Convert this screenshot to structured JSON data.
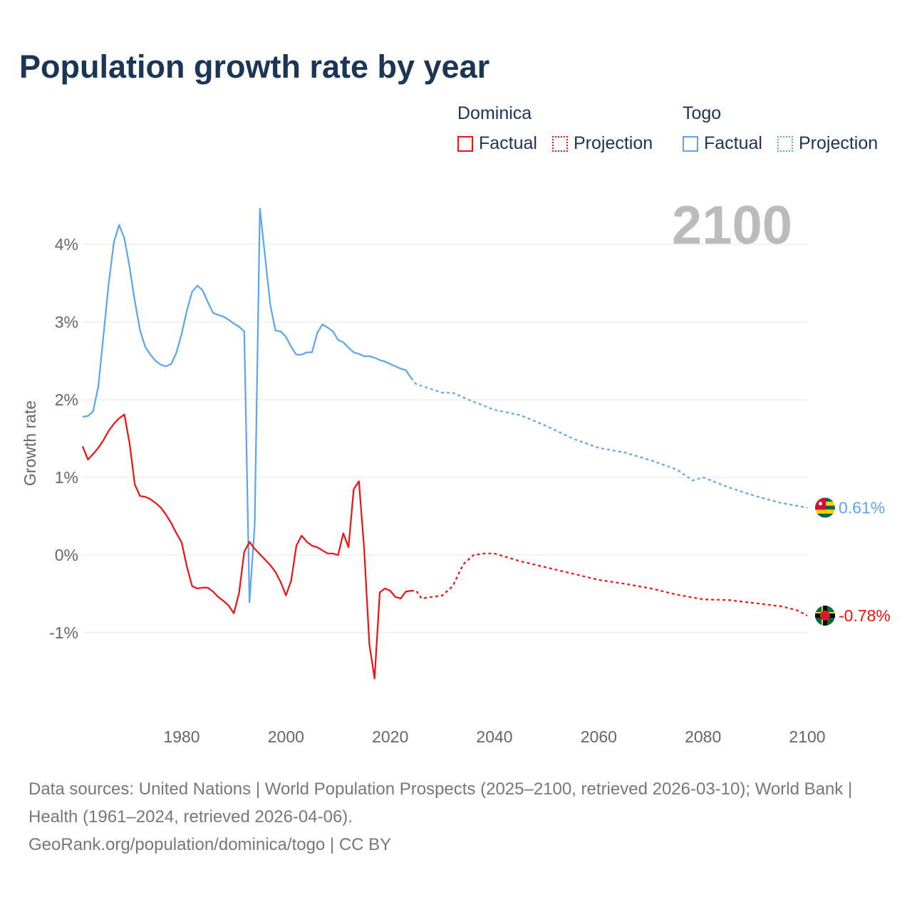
{
  "title": "Population growth rate by year",
  "legend": {
    "groups": [
      {
        "name": "Dominica",
        "factual": "Factual",
        "projection": "Projection",
        "color": "#ee1111"
      },
      {
        "name": "Togo",
        "factual": "Factual",
        "projection": "Projection",
        "color": "#5aa5ee"
      }
    ]
  },
  "year_label": "2100",
  "footer": {
    "sources": "Data sources: United Nations | World Population Prospects (2025–2100, retrieved 2026-03-10); World Bank | Health (1961–2024, retrieved 2026-04-06).",
    "credit": "GeoRank.org/population/dominica/togo | CC BY"
  },
  "chart_data": {
    "type": "line",
    "title": "Population growth rate by year",
    "xlabel": "",
    "ylabel": "Growth rate",
    "xlim": [
      1961,
      2100
    ],
    "ylim": [
      -2,
      4.5
    ],
    "x_ticks": [
      1980,
      2000,
      2020,
      2040,
      2060,
      2080,
      2100
    ],
    "x_tick_labels": [
      "1980",
      "2000",
      "2020",
      "2040",
      "2060",
      "2080",
      "2100"
    ],
    "y_ticks": [
      -1,
      0,
      1,
      2,
      3,
      4
    ],
    "y_tick_labels": [
      "-1%",
      "0%",
      "1%",
      "2%",
      "3%",
      "4%"
    ],
    "grid": true,
    "legend_position": "top-right",
    "series": [
      {
        "name": "Togo",
        "color": "#5aa5ee",
        "end_label": "0.61%",
        "factual": {
          "start_year": 1961,
          "values": [
            1.78,
            1.79,
            1.85,
            2.17,
            2.83,
            3.5,
            4.03,
            4.25,
            4.08,
            3.71,
            3.27,
            2.9,
            2.68,
            2.58,
            2.5,
            2.45,
            2.43,
            2.46,
            2.61,
            2.85,
            3.15,
            3.39,
            3.47,
            3.41,
            3.26,
            3.12,
            3.09,
            3.07,
            3.03,
            2.98,
            2.94,
            2.88,
            -0.61,
            0.38,
            4.46,
            3.84,
            3.22,
            2.89,
            2.88,
            2.81,
            2.68,
            2.58,
            2.58,
            2.61,
            2.61,
            2.86,
            2.97,
            2.93,
            2.88,
            2.77,
            2.74,
            2.67,
            2.61,
            2.59,
            2.56,
            2.56,
            2.54,
            2.51,
            2.49,
            2.46,
            2.43,
            2.4,
            2.38,
            2.28
          ]
        },
        "projection": {
          "years": [
            2024,
            2025,
            2030,
            2032,
            2035,
            2040,
            2045,
            2050,
            2055,
            2060,
            2065,
            2070,
            2075,
            2078,
            2080,
            2085,
            2090,
            2095,
            2100
          ],
          "values": [
            2.28,
            2.2,
            2.09,
            2.09,
            2.0,
            1.87,
            1.8,
            1.66,
            1.5,
            1.38,
            1.32,
            1.22,
            1.1,
            0.96,
            1.0,
            0.87,
            0.76,
            0.67,
            0.61
          ]
        }
      },
      {
        "name": "Dominica",
        "color": "#ee1111",
        "end_label": "-0.78%",
        "factual": {
          "start_year": 1961,
          "values": [
            1.4,
            1.23,
            1.3,
            1.38,
            1.48,
            1.6,
            1.69,
            1.76,
            1.81,
            1.44,
            0.91,
            0.76,
            0.75,
            0.72,
            0.67,
            0.61,
            0.52,
            0.41,
            0.28,
            0.16,
            -0.15,
            -0.4,
            -0.43,
            -0.42,
            -0.42,
            -0.47,
            -0.54,
            -0.59,
            -0.65,
            -0.75,
            -0.49,
            0.04,
            0.17,
            0.08,
            0.01,
            -0.06,
            -0.13,
            -0.22,
            -0.35,
            -0.52,
            -0.33,
            0.12,
            0.25,
            0.17,
            0.12,
            0.1,
            0.06,
            0.02,
            0.02,
            0.0,
            0.28,
            0.1,
            0.85,
            0.95,
            0.08,
            -1.15,
            -1.59,
            -0.48,
            -0.43,
            -0.46,
            -0.54,
            -0.56,
            -0.47,
            -0.46
          ]
        },
        "projection": {
          "years": [
            2024,
            2025,
            2026,
            2028,
            2030,
            2032,
            2034,
            2036,
            2038,
            2040,
            2045,
            2050,
            2055,
            2060,
            2065,
            2070,
            2075,
            2080,
            2085,
            2090,
            2095,
            2098,
            2100
          ],
          "values": [
            -0.46,
            -0.46,
            -0.56,
            -0.54,
            -0.52,
            -0.4,
            -0.12,
            0.0,
            0.02,
            0.02,
            -0.08,
            -0.16,
            -0.24,
            -0.32,
            -0.37,
            -0.43,
            -0.51,
            -0.57,
            -0.58,
            -0.62,
            -0.66,
            -0.71,
            -0.78
          ]
        }
      }
    ]
  }
}
